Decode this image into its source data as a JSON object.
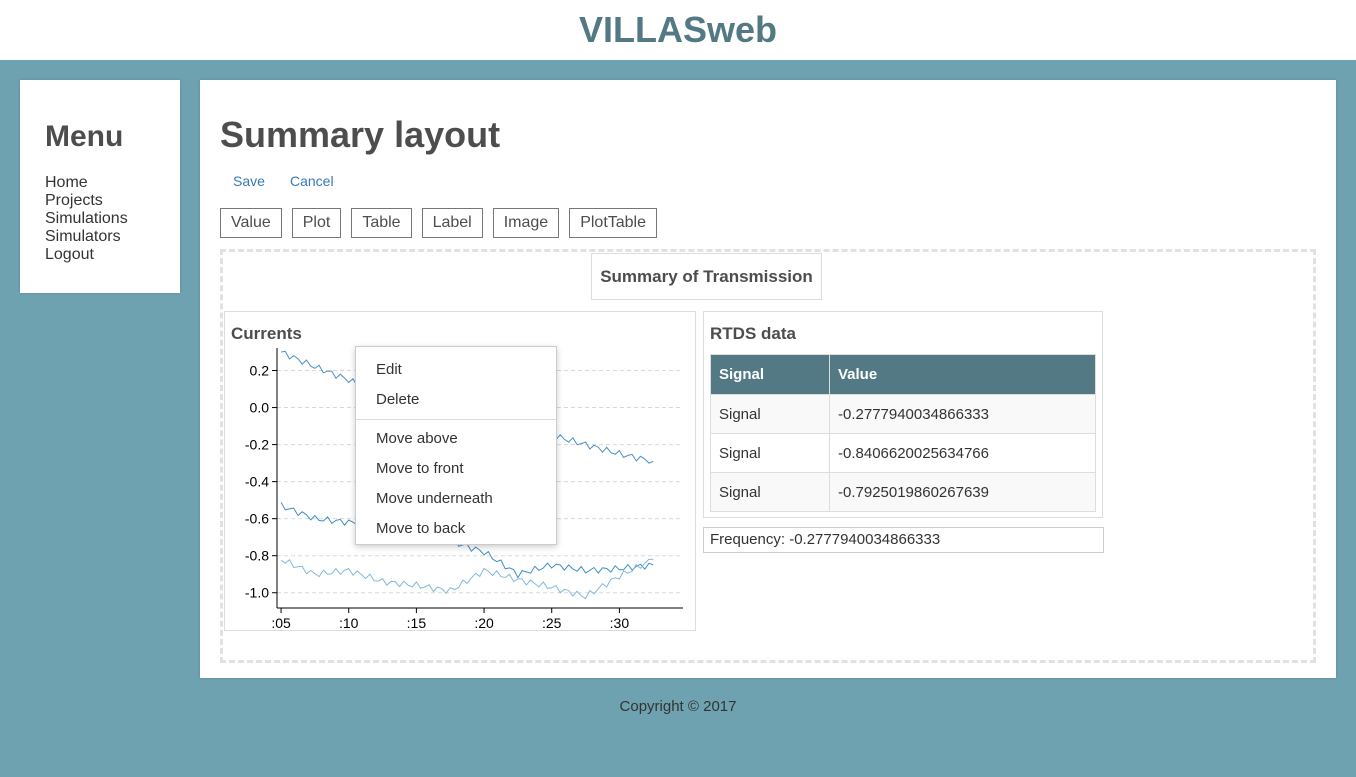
{
  "app": {
    "title": "VILLASweb"
  },
  "menu": {
    "title": "Menu",
    "items": [
      "Home",
      "Projects",
      "Simulations",
      "Simulators",
      "Logout"
    ]
  },
  "page": {
    "title": "Summary layout",
    "save_label": "Save",
    "cancel_label": "Cancel"
  },
  "toolbox": {
    "items": [
      "Value",
      "Plot",
      "Table",
      "Label",
      "Image",
      "PlotTable"
    ]
  },
  "widgets": {
    "label": {
      "text": "Summary of Transmission"
    },
    "plot": {
      "title": "Currents"
    },
    "table": {
      "title": "RTDS data",
      "columns": [
        "Signal",
        "Value"
      ],
      "rows": [
        [
          "Signal",
          "-0.2777940034866333"
        ],
        [
          "Signal",
          "-0.8406620025634766"
        ],
        [
          "Signal",
          "-0.7925019860267639"
        ]
      ]
    },
    "value": {
      "text": "Frequency: -0.2777940034866333"
    }
  },
  "context_menu": {
    "items_top": [
      "Edit",
      "Delete"
    ],
    "items_bottom": [
      "Move above",
      "Move to front",
      "Move underneath",
      "Move to back"
    ]
  },
  "colors": {
    "accent": "#527984",
    "background": "#6ea2b0",
    "series_1": "#4a90c4",
    "series_2": "#3f8fc4",
    "series_3": "#82b9dc"
  },
  "chart_data": {
    "type": "line",
    "title": "Currents",
    "xlabel": "",
    "ylabel": "",
    "x": [
      5,
      7.5,
      10,
      12.5,
      15,
      17.5,
      20,
      22.5,
      25,
      27.5,
      30,
      32.5
    ],
    "x_ticks": [
      ":05",
      ":10",
      ":15",
      ":20",
      ":25",
      ":30"
    ],
    "x_tick_values": [
      5,
      10,
      15,
      20,
      25,
      30
    ],
    "xlim": [
      4.7,
      34.7
    ],
    "y_ticks": [
      "0.2",
      "0.0",
      "-0.2",
      "-0.4",
      "-0.6",
      "-0.8",
      "-1.0"
    ],
    "y_tick_values": [
      0.2,
      0.0,
      -0.2,
      -0.4,
      -0.6,
      -0.8,
      -1.0
    ],
    "ylim": [
      -1.05,
      0.3
    ],
    "grid": true,
    "series": [
      {
        "values": [
          0.3,
          0.22,
          0.15,
          0.05,
          -0.05,
          -0.1,
          -0.15,
          -0.17,
          -0.15,
          -0.2,
          -0.25,
          -0.29
        ]
      },
      {
        "values": [
          -0.53,
          -0.6,
          -0.62,
          -0.62,
          -0.68,
          -0.72,
          -0.78,
          -0.9,
          -0.85,
          -0.88,
          -0.87,
          -0.85
        ]
      },
      {
        "values": [
          -0.82,
          -0.9,
          -0.88,
          -0.94,
          -0.96,
          -0.99,
          -0.88,
          -0.93,
          -0.97,
          -1.02,
          -0.91,
          -0.82
        ]
      }
    ]
  }
}
